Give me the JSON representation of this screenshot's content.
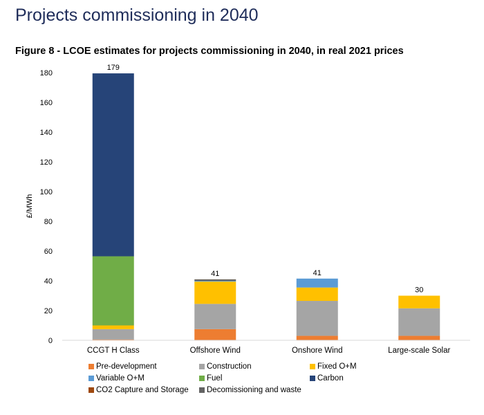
{
  "page": {
    "heading": "Projects commissioning in 2040",
    "figure_title": "Figure 8 - LCOE estimates for projects commissioning in 2040, in real 2021 prices"
  },
  "chart_data": {
    "type": "bar",
    "stacked": true,
    "title": "Figure 8 - LCOE estimates for projects commissioning in 2040, in real 2021 prices",
    "xlabel": "",
    "ylabel": "£/MWh",
    "ylim": [
      0,
      180
    ],
    "yticks": [
      0,
      20,
      40,
      60,
      80,
      100,
      120,
      140,
      160,
      180
    ],
    "grid": false,
    "legend_position": "bottom",
    "categories": [
      "CCGT H Class",
      "Offshore Wind",
      "Onshore Wind",
      "Large-scale Solar"
    ],
    "totals": [
      "179",
      "41",
      "41",
      "30"
    ],
    "series": [
      {
        "name": "Pre-development",
        "color": "#ed7d31",
        "values": [
          0.5,
          7.5,
          3,
          3
        ]
      },
      {
        "name": "Construction",
        "color": "#a5a5a5",
        "values": [
          7,
          17,
          23.5,
          18.5
        ]
      },
      {
        "name": "Fixed O+M",
        "color": "#ffc000",
        "values": [
          2.5,
          15,
          9,
          8.5
        ]
      },
      {
        "name": "Variable O+M",
        "color": "#5b9bd5",
        "values": [
          0,
          0.5,
          6,
          0
        ]
      },
      {
        "name": "Fuel",
        "color": "#70ad47",
        "values": [
          46.5,
          0,
          0,
          0
        ]
      },
      {
        "name": "Carbon",
        "color": "#264478",
        "values": [
          123,
          0,
          0,
          0
        ]
      },
      {
        "name": "CO2 Capture and Storage",
        "color": "#9e480e",
        "values": [
          0,
          0,
          0,
          0
        ]
      },
      {
        "name": "Decomissioning and waste",
        "color": "#636363",
        "values": [
          0,
          1,
          0,
          0
        ]
      }
    ]
  }
}
